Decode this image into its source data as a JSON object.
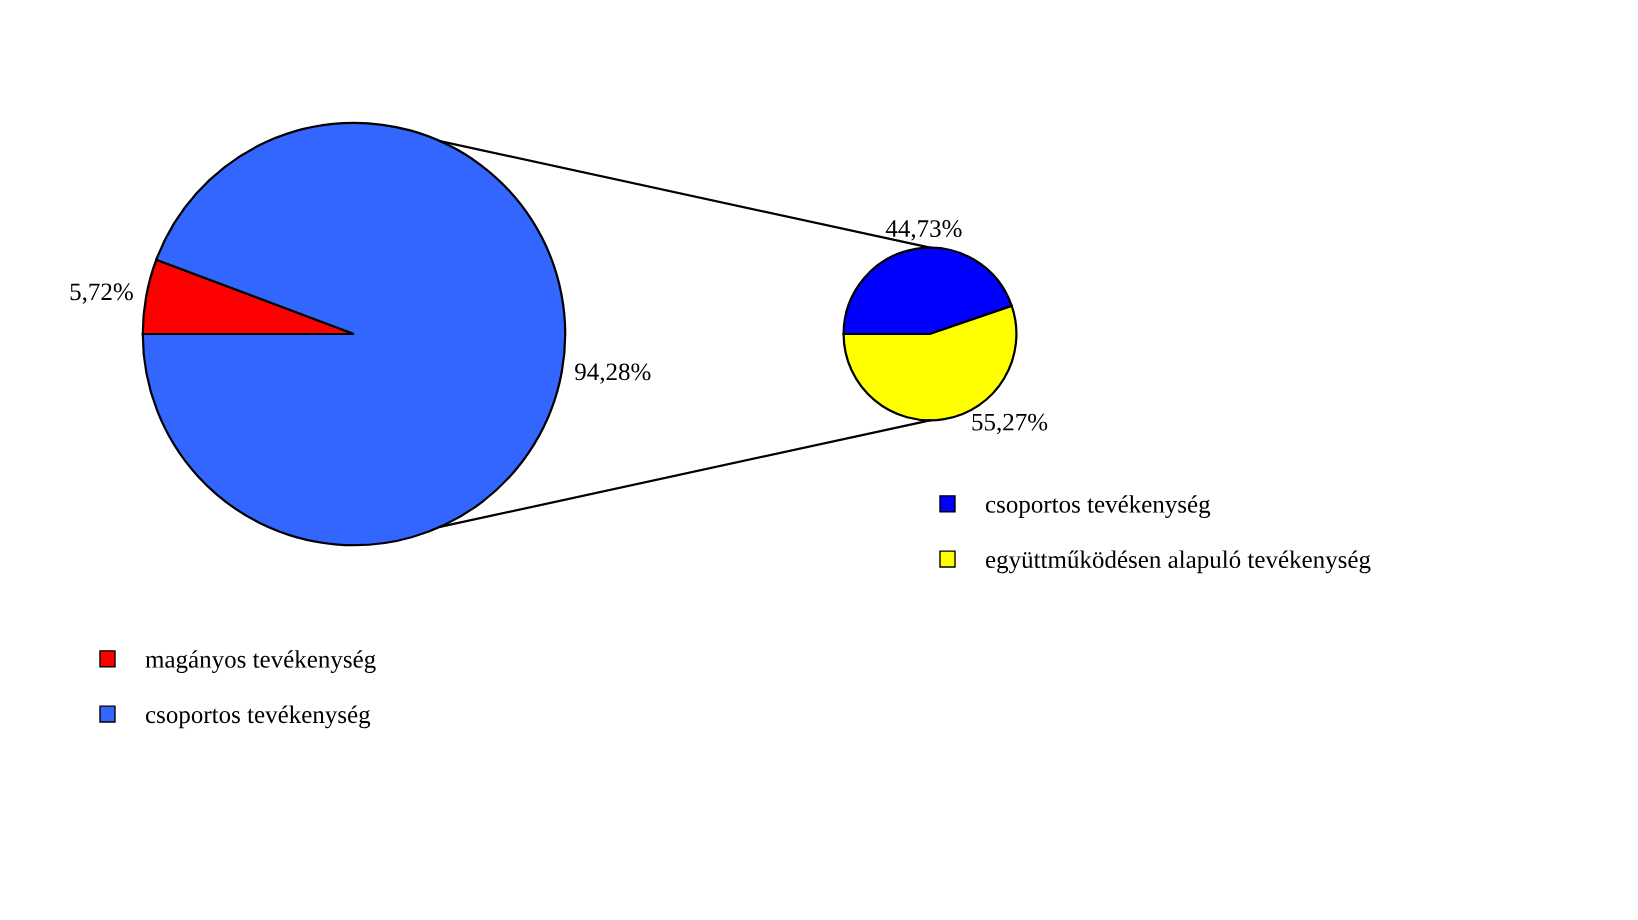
{
  "chart_data": [
    {
      "type": "pie",
      "categories": [
        "magányos tevékenység",
        "csoportos tevékenység"
      ],
      "values": [
        5.72,
        94.28
      ],
      "colors": [
        "#ff0000",
        "#3366ff"
      ],
      "value_labels": [
        "5,72%",
        "94,28%"
      ],
      "legend": "bottom left"
    },
    {
      "type": "pie",
      "categories": [
        "csoportos tevékenység",
        "együttműködésen alapuló tevékenység"
      ],
      "values": [
        44.73,
        55.27
      ],
      "colors": [
        "#0000ff",
        "#ffff00"
      ],
      "value_labels": [
        "44,73%",
        "55,27%"
      ],
      "legend": "bottom right"
    }
  ]
}
